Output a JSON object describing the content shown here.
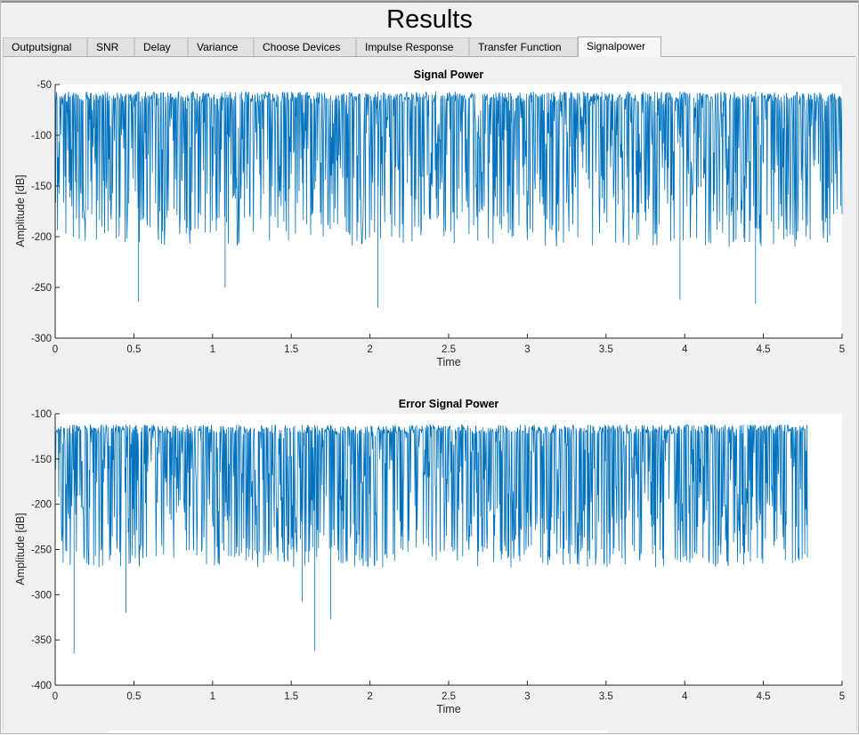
{
  "window": {
    "title": "Results"
  },
  "tabs": [
    {
      "label": "Outputsignal",
      "active": false
    },
    {
      "label": "SNR",
      "active": false
    },
    {
      "label": "Delay",
      "active": false
    },
    {
      "label": "Variance",
      "active": false
    },
    {
      "label": "Choose Devices",
      "active": false
    },
    {
      "label": "Impulse Response",
      "active": false
    },
    {
      "label": "Transfer Function",
      "active": false
    },
    {
      "label": "Signalpower",
      "active": true
    }
  ],
  "colors": {
    "line": "#0072bd",
    "axes_bg": "#ffffff",
    "figure_bg": "#f0f0f0"
  },
  "chart_data": [
    {
      "type": "line",
      "title": "Signal Power",
      "xlabel": "Time",
      "ylabel": "Amplitude [dB]",
      "xlim": [
        0,
        5
      ],
      "ylim": [
        -300,
        -50
      ],
      "xticks": [
        "0",
        "0.5",
        "1",
        "1.5",
        "2",
        "2.5",
        "3",
        "3.5",
        "4",
        "4.5",
        "5"
      ],
      "yticks": [
        "-50",
        "-100",
        "-150",
        "-200",
        "-250",
        "-300"
      ],
      "series_summary": {
        "x_end": 5,
        "upper_envelope": -57,
        "dense_lower": -175,
        "typical_min": -210,
        "deepest_dips": [
          [
            0.53,
            -264
          ],
          [
            2.05,
            -270
          ],
          [
            4.45,
            -266
          ],
          [
            1.08,
            -250
          ],
          [
            3.97,
            -262
          ]
        ]
      }
    },
    {
      "type": "line",
      "title": "Error Signal Power",
      "xlabel": "Time",
      "ylabel": "Amplitude [dB]",
      "xlim": [
        0,
        5
      ],
      "ylim": [
        -400,
        -100
      ],
      "xticks": [
        "0",
        "0.5",
        "1",
        "1.5",
        "2",
        "2.5",
        "3",
        "3.5",
        "4",
        "4.5",
        "5"
      ],
      "yticks": [
        "-100",
        "-150",
        "-200",
        "-250",
        "-300",
        "-350",
        "-400"
      ],
      "series_summary": {
        "x_end": 4.78,
        "upper_envelope": -112,
        "dense_lower": -245,
        "typical_min": -270,
        "deepest_dips": [
          [
            0.12,
            -365
          ],
          [
            1.65,
            -362
          ],
          [
            0.45,
            -320
          ],
          [
            1.75,
            -327
          ],
          [
            1.57,
            -308
          ]
        ]
      }
    }
  ]
}
